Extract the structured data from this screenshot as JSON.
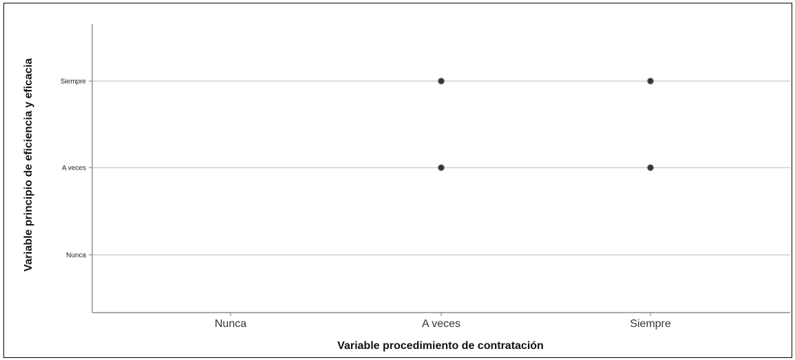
{
  "chart_data": {
    "type": "scatter",
    "title": "",
    "xlabel": "Variable procedimiento de contratación",
    "ylabel": "Variable principio de eficiencia y eficacia",
    "x_categories": [
      "Nunca",
      "A veces",
      "Siempre"
    ],
    "y_categories": [
      "Nunca",
      "A veces",
      "Siempre"
    ],
    "points": [
      {
        "x": "A veces",
        "y": "Siempre"
      },
      {
        "x": "Siempre",
        "y": "Siempre"
      },
      {
        "x": "A veces",
        "y": "A veces"
      },
      {
        "x": "Siempre",
        "y": "A veces"
      }
    ],
    "grid": "horizontal",
    "legend": "none",
    "colors": {
      "grid": "#cfcfcf",
      "axis": "#777777",
      "marker_fill": "#333333",
      "marker_edge": "#555555"
    }
  }
}
